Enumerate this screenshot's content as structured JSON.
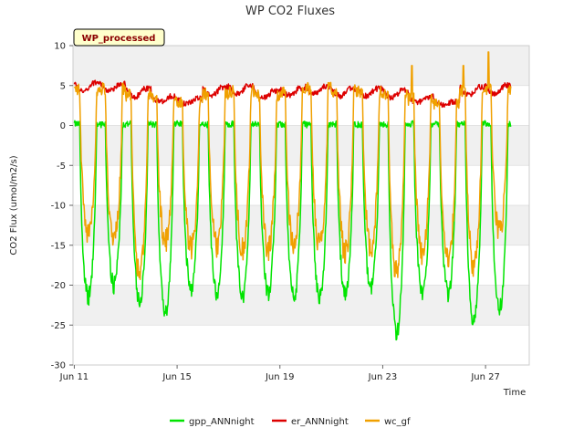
{
  "chart_data": {
    "type": "line",
    "title": "WP CO2 Fluxes",
    "xlabel": "Time",
    "ylabel": "CO2 Flux (umol/m2/s)",
    "badge": "WP_processed",
    "xlim_days": [
      10.95,
      28.7
    ],
    "ylim": [
      -30,
      10
    ],
    "yticks": [
      10,
      5,
      0,
      -5,
      -10,
      -15,
      -20,
      -25,
      -30
    ],
    "xticks": [
      {
        "day": 11,
        "label": "Jun 11"
      },
      {
        "day": 15,
        "label": "Jun 15"
      },
      {
        "day": 19,
        "label": "Jun 19"
      },
      {
        "day": 23,
        "label": "Jun 23"
      },
      {
        "day": 27,
        "label": "Jun 27"
      }
    ],
    "banded_background": true,
    "colors": {
      "gpp": "#00e400",
      "er": "#dd0000",
      "wc": "#f0a000"
    },
    "series": [
      {
        "name": "gpp_ANNnight",
        "color": "#00e400",
        "daily_night_value": [
          0.2,
          0.1,
          0.2,
          0.1,
          0.2,
          0.1,
          0.2,
          0.1,
          0.2,
          0.1,
          0.2,
          0.1,
          0.1,
          0.2,
          0.1,
          0.2,
          0.1
        ],
        "daily_min": [
          -21.5,
          -20,
          -22,
          -23.5,
          -20.5,
          -21,
          -21.5,
          -21,
          -21.5,
          -21.5,
          -21,
          -20.5,
          -26,
          -21,
          -21,
          -24.5,
          -23
        ]
      },
      {
        "name": "er_ANNnight",
        "color": "#dd0000",
        "daily_night_value": [
          5.3,
          5.2,
          4.6,
          3.7,
          3.4,
          4.8,
          5.0,
          4.3,
          4.6,
          4.9,
          4.6,
          4.6,
          4.4,
          3.6,
          3.0,
          4.8,
          5.0
        ],
        "daily_day_value": [
          4.3,
          4.3,
          3.6,
          3.0,
          2.7,
          3.8,
          4.0,
          3.5,
          3.8,
          4.0,
          3.7,
          3.7,
          3.5,
          2.9,
          2.6,
          3.8,
          4.0
        ]
      },
      {
        "name": "wc_gf",
        "color": "#f0a000",
        "daily_night_value": [
          4.5,
          4.6,
          3.8,
          3.3,
          2.8,
          4.0,
          4.3,
          3.8,
          4.2,
          4.6,
          4.3,
          4.2,
          4.0,
          3.3,
          2.7,
          4.3,
          4.6
        ],
        "daily_min": [
          -13.5,
          -14.5,
          -18.5,
          -14.5,
          -15.5,
          -15,
          -15.5,
          -15.5,
          -15,
          -15,
          -16,
          -15.5,
          -18.5,
          -16,
          -17,
          -17.5,
          -13.5
        ],
        "peak_max": 9.2
      }
    ],
    "legend_position": "bottom-center"
  }
}
